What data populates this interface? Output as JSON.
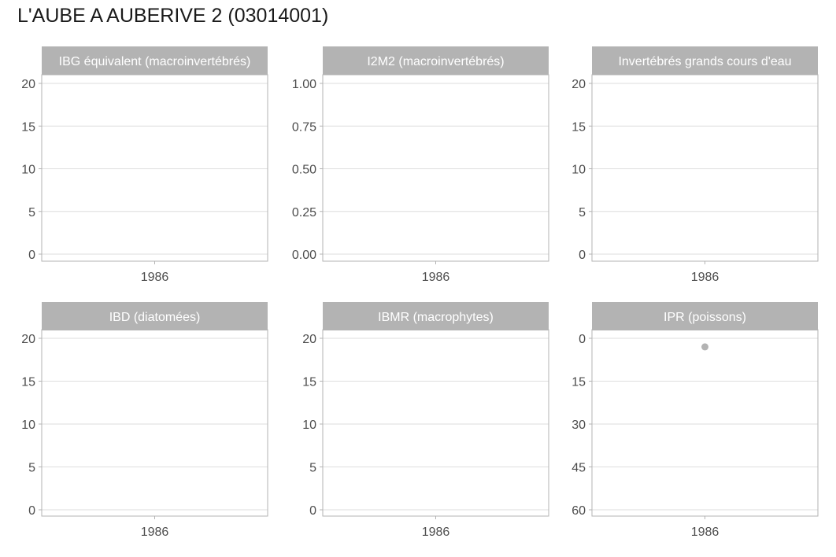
{
  "title": "L'AUBE A AUBERIVE 2 (03014001)",
  "colors": {
    "strip": "#b3b3b3",
    "panel_border": "#b3b3b3",
    "grid": "#dedede",
    "point": "#b3b3b3",
    "tick_text": "#4d4d4d",
    "title": "#1a1a1a"
  },
  "chart_data": [
    {
      "type": "scatter",
      "title": "IBG équivalent (macroinvertébrés)",
      "x_ticks": [
        "1986"
      ],
      "y_ticks": [
        "0",
        "5",
        "10",
        "15",
        "20"
      ],
      "ylim": [
        0,
        20
      ],
      "y_reversed": false,
      "points": []
    },
    {
      "type": "scatter",
      "title": "I2M2 (macroinvertébrés)",
      "x_ticks": [
        "1986"
      ],
      "y_ticks": [
        "0.00",
        "0.25",
        "0.50",
        "0.75",
        "1.00"
      ],
      "ylim": [
        0,
        1
      ],
      "y_reversed": false,
      "points": []
    },
    {
      "type": "scatter",
      "title": "Invertébrés grands cours d'eau",
      "x_ticks": [
        "1986"
      ],
      "y_ticks": [
        "0",
        "5",
        "10",
        "15",
        "20"
      ],
      "ylim": [
        0,
        20
      ],
      "y_reversed": false,
      "points": []
    },
    {
      "type": "scatter",
      "title": "IBD (diatomées)",
      "x_ticks": [
        "1986"
      ],
      "y_ticks": [
        "0",
        "5",
        "10",
        "15",
        "20"
      ],
      "ylim": [
        0,
        20
      ],
      "y_reversed": false,
      "points": []
    },
    {
      "type": "scatter",
      "title": "IBMR (macrophytes)",
      "x_ticks": [
        "1986"
      ],
      "y_ticks": [
        "0",
        "5",
        "10",
        "15",
        "20"
      ],
      "ylim": [
        0,
        20
      ],
      "y_reversed": false,
      "points": []
    },
    {
      "type": "scatter",
      "title": "IPR (poissons)",
      "x_ticks": [
        "1986"
      ],
      "y_ticks": [
        "0",
        "15",
        "30",
        "45",
        "60"
      ],
      "ylim": [
        0,
        60
      ],
      "y_reversed": true,
      "points": [
        {
          "x": "1986",
          "y": 3
        }
      ]
    }
  ]
}
